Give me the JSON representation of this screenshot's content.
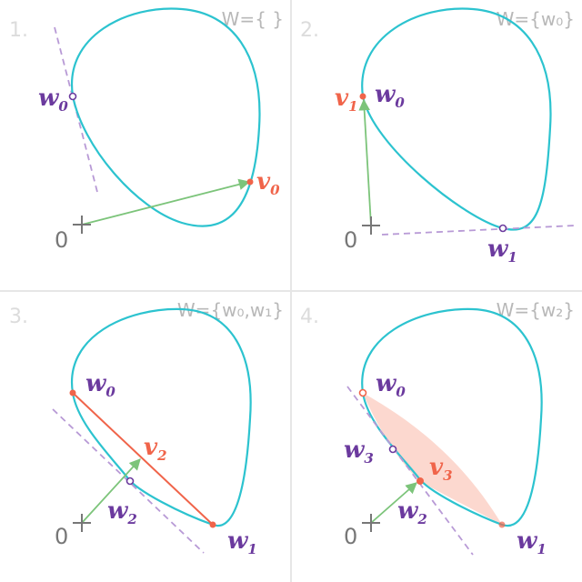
{
  "colors": {
    "curve": "#2cc3cf",
    "point_label": "#6b3a9e",
    "v_label": "#f0644a",
    "arrow": "#7cc47a",
    "tangent": "#b89ad6",
    "step_number": "#dcdcdc",
    "set_label": "#b8b8b8",
    "origin": "#777777",
    "divider": "#e6e6e6",
    "shade": "#f9b8a8"
  },
  "panels": [
    {
      "number": "1.",
      "set_label": "W={ }",
      "origin_label": "0",
      "labels": {
        "w0": "w",
        "w0_sub": "0",
        "v": "v",
        "v_sub": "0"
      }
    },
    {
      "number": "2.",
      "set_label": "W={w₀}",
      "origin_label": "0",
      "labels": {
        "v": "v",
        "v_sub": "1",
        "w0": "w",
        "w0_sub": "0",
        "w1": "w",
        "w1_sub": "1"
      }
    },
    {
      "number": "3.",
      "set_label": "W={w₀,w₁}",
      "origin_label": "0",
      "labels": {
        "w0": "w",
        "w0_sub": "0",
        "v": "v",
        "v_sub": "2",
        "w2": "w",
        "w2_sub": "2",
        "w1": "w",
        "w1_sub": "1"
      }
    },
    {
      "number": "4.",
      "set_label": "W={w₂}",
      "origin_label": "0",
      "labels": {
        "w0": "w",
        "w0_sub": "0",
        "w3": "w",
        "w3_sub": "3",
        "v": "v",
        "v_sub": "3",
        "w2": "w",
        "w2_sub": "2",
        "w1": "w",
        "w1_sub": "1"
      }
    }
  ]
}
